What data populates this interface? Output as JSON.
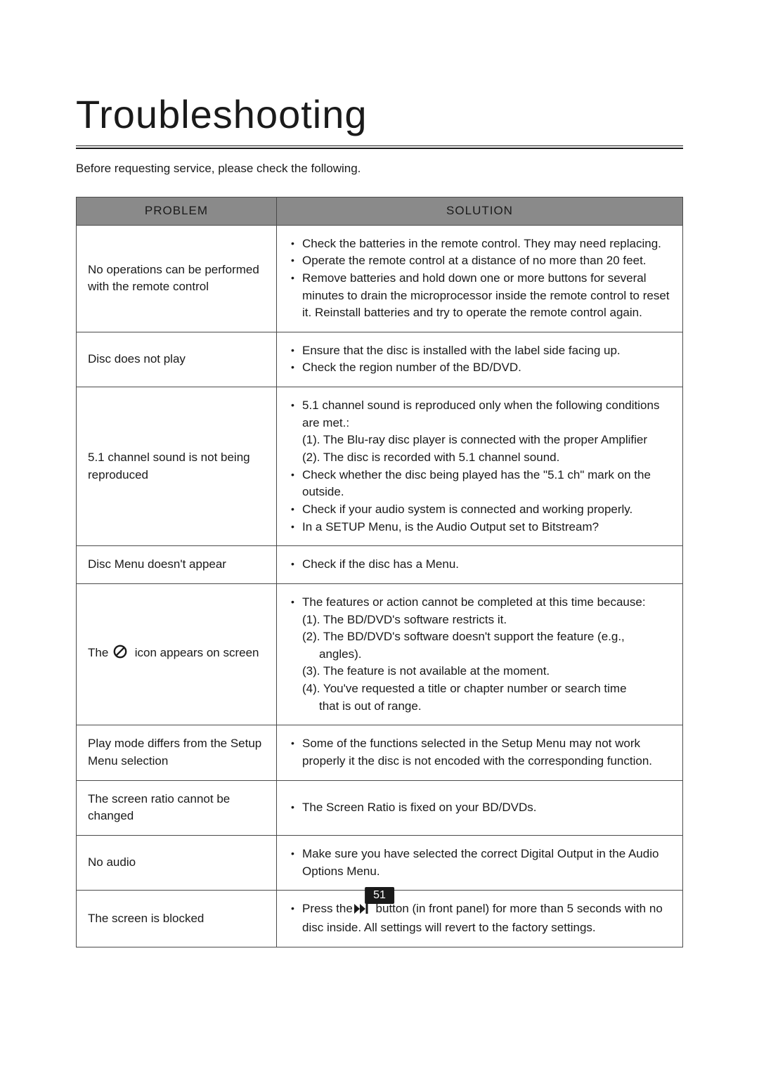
{
  "colors": {
    "text": "#1a1a1a",
    "header_bg": "#8a8a8a",
    "border": "#4a4a4a",
    "page_num_bg": "#1a1a1a",
    "page_num_fg": "#ffffff",
    "background": "#ffffff"
  },
  "title": "Troubleshooting",
  "intro": "Before requesting service, please check the following.",
  "headers": {
    "problem": "PROBLEM",
    "solution": "SOLUTION"
  },
  "rows": [
    {
      "problem": {
        "type": "plain",
        "text": "No operations can be performed with the remote control"
      },
      "solution": [
        {
          "bullet": true,
          "indent": 1,
          "text": "Check the batteries in the remote control. They may need replacing."
        },
        {
          "bullet": true,
          "indent": 1,
          "text": "Operate the remote control at a distance of no more than 20 feet."
        },
        {
          "bullet": true,
          "indent": 1,
          "text": "Remove batteries and hold down one or more buttons for several minutes to drain the microprocessor inside the remote control to reset it. Reinstall batteries and try to operate the remote control again."
        }
      ]
    },
    {
      "problem": {
        "type": "plain",
        "text": "Disc does not play"
      },
      "solution": [
        {
          "bullet": true,
          "indent": 1,
          "text": "Ensure that the disc is installed with the label side facing up."
        },
        {
          "bullet": true,
          "indent": 1,
          "text": "Check the region number of the BD/DVD."
        }
      ]
    },
    {
      "problem": {
        "type": "plain",
        "text": "5.1 channel sound is not being reproduced"
      },
      "solution": [
        {
          "bullet": true,
          "indent": 1,
          "text": "5.1 channel sound is reproduced only when the following conditions are met.:"
        },
        {
          "bullet": false,
          "indent": 1,
          "text": "(1). The Blu-ray disc player is connected with the proper Amplifier"
        },
        {
          "bullet": false,
          "indent": 1,
          "text": "(2). The disc is recorded with 5.1 channel sound."
        },
        {
          "bullet": true,
          "indent": 1,
          "text": "Check whether the disc being played has the \"5.1 ch\" mark on the outside."
        },
        {
          "bullet": true,
          "indent": 1,
          "text": "Check if your audio system is connected and working properly."
        },
        {
          "bullet": true,
          "indent": 1,
          "text": "In a SETUP Menu, is the Audio Output set to Bitstream?"
        }
      ]
    },
    {
      "problem": {
        "type": "plain",
        "text": "Disc Menu doesn't appear"
      },
      "solution": [
        {
          "bullet": true,
          "indent": 1,
          "text": "Check if the disc has a Menu."
        }
      ]
    },
    {
      "problem": {
        "type": "icon",
        "icon": "prohibition-icon",
        "pre": "The ",
        "post": " icon appears on screen"
      },
      "solution": [
        {
          "bullet": true,
          "indent": 1,
          "text": "The features or action cannot be completed at this time because:"
        },
        {
          "bullet": false,
          "indent": 1,
          "text": "(1). The BD/DVD's software restricts it."
        },
        {
          "bullet": false,
          "indent": 1,
          "text": "(2). The BD/DVD's software doesn't support the feature (e.g.,"
        },
        {
          "bullet": false,
          "indent": 2,
          "text": "angles)."
        },
        {
          "bullet": false,
          "indent": 1,
          "text": "(3). The feature is not available at the moment."
        },
        {
          "bullet": false,
          "indent": 1,
          "text": "(4). You've requested a title or chapter number or search time"
        },
        {
          "bullet": false,
          "indent": 2,
          "text": "that is out of range."
        }
      ]
    },
    {
      "problem": {
        "type": "plain",
        "text": "Play mode differs from the Setup Menu selection"
      },
      "solution": [
        {
          "bullet": true,
          "indent": 1,
          "text": "Some of the functions selected in the Setup Menu may not work properly it the disc is not encoded with the corresponding function."
        }
      ]
    },
    {
      "problem": {
        "type": "plain",
        "text": "The screen ratio cannot be changed"
      },
      "solution": [
        {
          "bullet": true,
          "indent": 1,
          "text": "The Screen Ratio is fixed on your BD/DVDs."
        }
      ]
    },
    {
      "problem": {
        "type": "plain",
        "text": "No audio"
      },
      "solution": [
        {
          "bullet": true,
          "indent": 1,
          "text": "Make sure you have selected the correct Digital Output in the Audio Options Menu."
        }
      ]
    },
    {
      "problem": {
        "type": "plain",
        "text": "The screen is blocked"
      },
      "solution": [
        {
          "bullet": true,
          "indent": 1,
          "icon": "next-track-icon",
          "pre": "Press the",
          "post": " button (in front panel) for more than 5 seconds with no disc inside. All settings will revert to the factory settings."
        }
      ]
    }
  ],
  "page_number": "51",
  "icons": {
    "prohibition-icon": "⊘",
    "next-track-icon": "⏭"
  }
}
